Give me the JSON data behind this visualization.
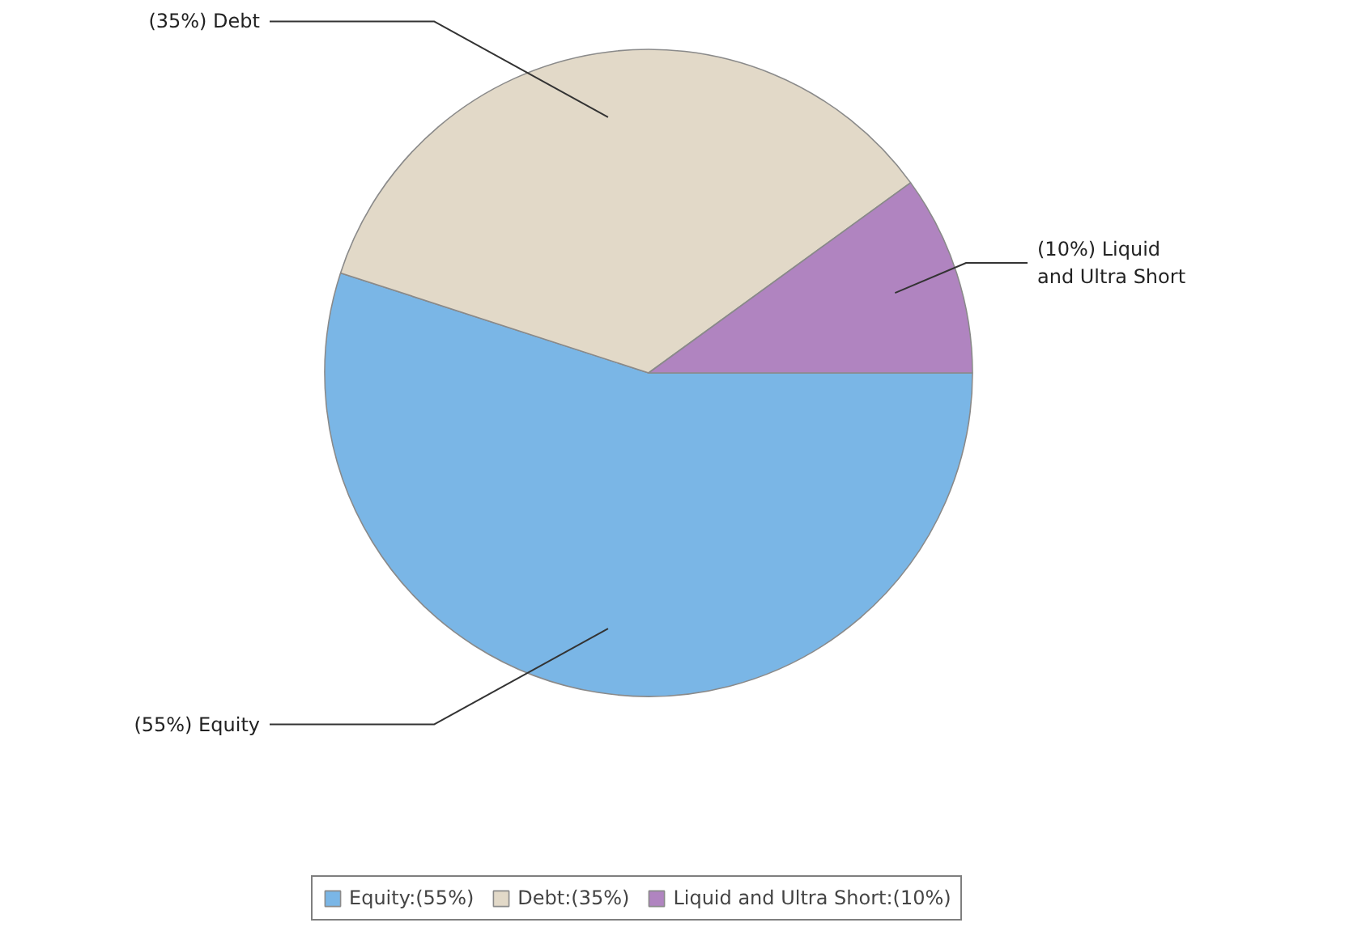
{
  "chart_data": {
    "type": "pie",
    "categories": [
      "Equity",
      "Debt",
      "Liquid and Ultra Short"
    ],
    "values": [
      55,
      35,
      10
    ],
    "value_labels": [
      "(55%)",
      "(35%)",
      "(10%)"
    ],
    "colors": [
      "#7ab6e6",
      "#e2d9c8",
      "#b084c0"
    ],
    "legend": "bottom"
  }
}
